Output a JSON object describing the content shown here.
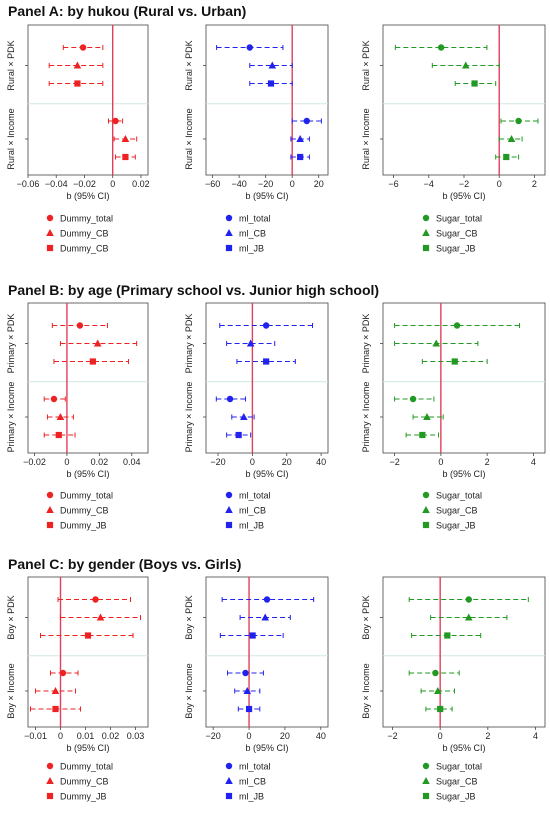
{
  "panels": [
    {
      "title": "Panel A: by hukou (Rural vs. Urban)"
    },
    {
      "title": "Panel B: by age (Primary school vs. Junior high school)"
    },
    {
      "title": "Panel C: by gender (Boys vs. Girls)"
    }
  ],
  "colors": {
    "red": "#ee2222",
    "blue": "#2222ee",
    "green": "#229922",
    "zero_line": "#e0405a",
    "separator": "#cfe8e4"
  },
  "chart_data": [
    {
      "type": "scatter",
      "panel": "A",
      "xlabel": "b (95% CI)",
      "ylabels": [
        "Rural × PDK",
        "Rural × Income"
      ],
      "xlim": [
        -0.06,
        0.025
      ],
      "xticks": [
        -0.06,
        -0.04,
        -0.02,
        0,
        0.02
      ],
      "xticklabels": [
        "−0.06",
        "−0.04",
        "−0.02",
        "0",
        "0.02"
      ],
      "color": "red",
      "legend": [
        "Dummy_total",
        "Dummy_CB",
        "Dummy_CB"
      ],
      "series": [
        {
          "name": "Dummy_total",
          "marker": "circle",
          "points": [
            [
              -0.021,
              -0.035,
              -0.007
            ],
            [
              0.002,
              -0.003,
              0.007
            ]
          ]
        },
        {
          "name": "Dummy_CB",
          "marker": "triangle",
          "points": [
            [
              -0.025,
              -0.045,
              -0.007
            ],
            [
              0.009,
              0.001,
              0.017
            ]
          ]
        },
        {
          "name": "Dummy_CB",
          "marker": "square",
          "points": [
            [
              -0.025,
              -0.045,
              -0.007
            ],
            [
              0.009,
              0.002,
              0.016
            ]
          ]
        }
      ]
    },
    {
      "type": "scatter",
      "panel": "A",
      "xlabel": "b (95% CI)",
      "ylabels": [
        "Rural × PDK",
        "Rural × Income"
      ],
      "xlim": [
        -65,
        27
      ],
      "xticks": [
        -60,
        -40,
        -20,
        0,
        20
      ],
      "xticklabels": [
        "−60",
        "−40",
        "−20",
        "0",
        "20"
      ],
      "color": "blue",
      "legend": [
        "ml_total",
        "ml_CB",
        "ml_JB"
      ],
      "series": [
        {
          "name": "ml_total",
          "marker": "circle",
          "points": [
            [
              -32,
              -57,
              -7
            ],
            [
              11,
              0,
              22
            ]
          ]
        },
        {
          "name": "ml_CB",
          "marker": "triangle",
          "points": [
            [
              -15,
              -32,
              0
            ],
            [
              6,
              -1,
              13
            ]
          ]
        },
        {
          "name": "ml_JB",
          "marker": "square",
          "points": [
            [
              -16,
              -32,
              0
            ],
            [
              6,
              -1,
              13
            ]
          ]
        }
      ]
    },
    {
      "type": "scatter",
      "panel": "A",
      "xlabel": "b (95% CI)",
      "ylabels": [
        "Rural × PDK",
        "Rural × Income"
      ],
      "xlim": [
        -6.6,
        2.6
      ],
      "xticks": [
        -6,
        -4,
        -2,
        0,
        2
      ],
      "xticklabels": [
        "−6",
        "−4",
        "−2",
        "0",
        "2"
      ],
      "color": "green",
      "legend": [
        "Sugar_total",
        "Sugar_CB",
        "Sugar_JB"
      ],
      "series": [
        {
          "name": "Sugar_total",
          "marker": "circle",
          "points": [
            [
              -3.3,
              -5.9,
              -0.7
            ],
            [
              1.1,
              0.1,
              2.2
            ]
          ]
        },
        {
          "name": "Sugar_CB",
          "marker": "triangle",
          "points": [
            [
              -1.9,
              -3.8,
              0
            ],
            [
              0.7,
              0,
              1.3
            ]
          ]
        },
        {
          "name": "Sugar_JB",
          "marker": "square",
          "points": [
            [
              -1.4,
              -2.5,
              -0.2
            ],
            [
              0.4,
              -0.2,
              1.1
            ]
          ]
        }
      ]
    },
    {
      "type": "scatter",
      "panel": "B",
      "xlabel": "b (95% CI)",
      "ylabels": [
        "Primary × PDK",
        "Primary × Income"
      ],
      "xlim": [
        -0.024,
        0.05
      ],
      "xticks": [
        -0.02,
        0,
        0.02,
        0.04
      ],
      "xticklabels": [
        "−0.02",
        "0",
        "0.02",
        "0.04"
      ],
      "color": "red",
      "legend": [
        "Dummy_total",
        "Dummy_CB",
        "Dummy_JB"
      ],
      "series": [
        {
          "name": "Dummy_total",
          "marker": "circle",
          "points": [
            [
              0.008,
              -0.009,
              0.025
            ],
            [
              -0.008,
              -0.014,
              -0.001
            ]
          ]
        },
        {
          "name": "Dummy_CB",
          "marker": "triangle",
          "points": [
            [
              0.019,
              -0.004,
              0.043
            ],
            [
              -0.004,
              -0.012,
              0.004
            ]
          ]
        },
        {
          "name": "Dummy_JB",
          "marker": "square",
          "points": [
            [
              0.016,
              -0.008,
              0.038
            ],
            [
              -0.005,
              -0.014,
              0.005
            ]
          ]
        }
      ]
    },
    {
      "type": "scatter",
      "panel": "B",
      "xlabel": "b (95% CI)",
      "ylabels": [
        "Primary × PDK",
        "Primary × Income"
      ],
      "xlim": [
        -27,
        44
      ],
      "xticks": [
        -20,
        0,
        20,
        40
      ],
      "xticklabels": [
        "−20",
        "0",
        "20",
        "40"
      ],
      "color": "blue",
      "legend": [
        "ml_total",
        "ml_CB",
        "ml_JB"
      ],
      "series": [
        {
          "name": "ml_total",
          "marker": "circle",
          "points": [
            [
              8,
              -19,
              35
            ],
            [
              -13,
              -21,
              -4
            ]
          ]
        },
        {
          "name": "ml_CB",
          "marker": "triangle",
          "points": [
            [
              -1,
              -15,
              13
            ],
            [
              -5,
              -12,
              1
            ]
          ]
        },
        {
          "name": "ml_JB",
          "marker": "square",
          "points": [
            [
              8,
              -9,
              25
            ],
            [
              -8,
              -15,
              -1
            ]
          ]
        }
      ]
    },
    {
      "type": "scatter",
      "panel": "B",
      "xlabel": "b (95% CI)",
      "ylabels": [
        "Primary × PDK",
        "Primary × Income"
      ],
      "xlim": [
        -2.5,
        4.5
      ],
      "xticks": [
        -2,
        0,
        2,
        4
      ],
      "xticklabels": [
        "−2",
        "0",
        "2",
        "4"
      ],
      "color": "green",
      "legend": [
        "Sugar_total",
        "Sugar_CB",
        "Sugar_JB"
      ],
      "series": [
        {
          "name": "Sugar_total",
          "marker": "circle",
          "points": [
            [
              0.7,
              -2.0,
              3.4
            ],
            [
              -1.2,
              -2.0,
              -0.3
            ]
          ]
        },
        {
          "name": "Sugar_CB",
          "marker": "triangle",
          "points": [
            [
              -0.2,
              -2.0,
              1.6
            ],
            [
              -0.6,
              -1.2,
              0.1
            ]
          ]
        },
        {
          "name": "Sugar_JB",
          "marker": "square",
          "points": [
            [
              0.6,
              -0.8,
              2.0
            ],
            [
              -0.8,
              -1.5,
              -0.1
            ]
          ]
        }
      ]
    },
    {
      "type": "scatter",
      "panel": "C",
      "xlabel": "b (95% CI)",
      "ylabels": [
        "Boy × PDK",
        "Boy × Income"
      ],
      "xlim": [
        -0.013,
        0.035
      ],
      "xticks": [
        -0.01,
        0,
        0.01,
        0.02,
        0.03
      ],
      "xticklabels": [
        "−0.01",
        "0",
        "0.01",
        "0.02",
        "0.03"
      ],
      "color": "red",
      "legend": [
        "Dummy_total",
        "Dummy_CB",
        "Dummy_JB"
      ],
      "series": [
        {
          "name": "Dummy_total",
          "marker": "circle",
          "points": [
            [
              0.014,
              -0.001,
              0.028
            ],
            [
              0.001,
              -0.004,
              0.007
            ]
          ]
        },
        {
          "name": "Dummy_CB",
          "marker": "triangle",
          "points": [
            [
              0.016,
              0,
              0.032
            ],
            [
              -0.002,
              -0.01,
              0.006
            ]
          ]
        },
        {
          "name": "Dummy_JB",
          "marker": "square",
          "points": [
            [
              0.011,
              -0.008,
              0.029
            ],
            [
              -0.002,
              -0.012,
              0.008
            ]
          ]
        }
      ]
    },
    {
      "type": "scatter",
      "panel": "C",
      "xlabel": "b (95% CI)",
      "ylabels": [
        "Boy × PDK",
        "Boy × Income"
      ],
      "xlim": [
        -24,
        44
      ],
      "xticks": [
        -20,
        0,
        20,
        40
      ],
      "xticklabels": [
        "−20",
        "0",
        "20",
        "40"
      ],
      "color": "blue",
      "legend": [
        "ml_total",
        "ml_CB",
        "ml_JB"
      ],
      "series": [
        {
          "name": "ml_total",
          "marker": "circle",
          "points": [
            [
              10,
              -15,
              36
            ],
            [
              -2,
              -12,
              8
            ]
          ]
        },
        {
          "name": "ml_CB",
          "marker": "triangle",
          "points": [
            [
              9,
              -5,
              23
            ],
            [
              -1,
              -8,
              6
            ]
          ]
        },
        {
          "name": "ml_JB",
          "marker": "square",
          "points": [
            [
              2,
              -16,
              19
            ],
            [
              0,
              -6,
              6
            ]
          ]
        }
      ]
    },
    {
      "type": "scatter",
      "panel": "C",
      "xlabel": "b (95% CI)",
      "ylabels": [
        "Boy × PDK",
        "Boy × Income"
      ],
      "xlim": [
        -2.4,
        4.4
      ],
      "xticks": [
        -2,
        0,
        2,
        4
      ],
      "xticklabels": [
        "−2",
        "0",
        "2",
        "4"
      ],
      "color": "green",
      "legend": [
        "Sugar_total",
        "Sugar_CB",
        "Sugar_JB"
      ],
      "series": [
        {
          "name": "Sugar_total",
          "marker": "circle",
          "points": [
            [
              1.2,
              -1.3,
              3.7
            ],
            [
              -0.2,
              -1.3,
              0.8
            ]
          ]
        },
        {
          "name": "Sugar_CB",
          "marker": "triangle",
          "points": [
            [
              1.2,
              -0.4,
              2.8
            ],
            [
              -0.1,
              -0.8,
              0.6
            ]
          ]
        },
        {
          "name": "Sugar_JB",
          "marker": "square",
          "points": [
            [
              0.3,
              -1.2,
              1.7
            ],
            [
              0,
              -0.6,
              0.5
            ]
          ]
        }
      ]
    }
  ]
}
